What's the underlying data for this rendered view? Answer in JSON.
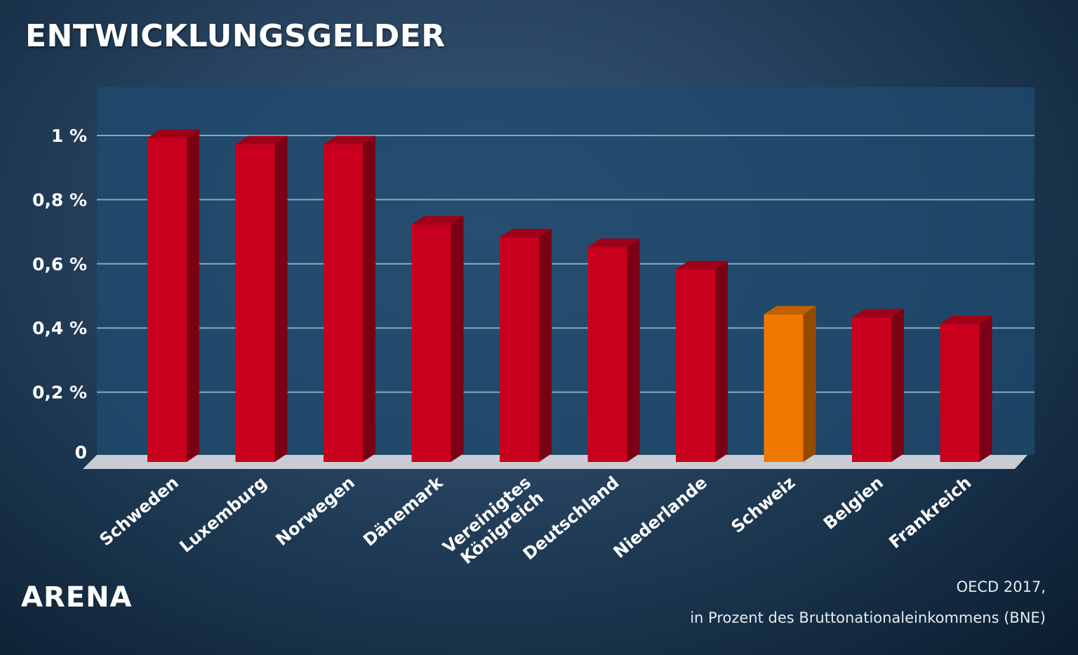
{
  "header": {
    "title": "ENTWICKLUNGSGELDER"
  },
  "footer": {
    "logo": "ARENA",
    "source_line1": "OECD 2017,",
    "source_line2": "in Prozent des Bruttonationaleinkommens (BNE)"
  },
  "colors": {
    "bar": "#c8001e",
    "highlight": "#f07800",
    "plot_bg": "#1f4a6e",
    "floor": "#c9cdd3",
    "grid": "#9ab8d2"
  },
  "chart_data": {
    "type": "bar",
    "title": "ENTWICKLUNGSGELDER",
    "xlabel": "",
    "ylabel": "",
    "ylim": [
      0,
      1.1
    ],
    "grid": true,
    "yticks": [
      {
        "value": 0,
        "label": "0"
      },
      {
        "value": 0.2,
        "label": "0,2 %"
      },
      {
        "value": 0.4,
        "label": "0,4 %"
      },
      {
        "value": 0.6,
        "label": "0,6 %"
      },
      {
        "value": 0.8,
        "label": "0,8 %"
      },
      {
        "value": 1.0,
        "label": "1 %"
      }
    ],
    "categories": [
      [
        "Schweden"
      ],
      [
        "Luxemburg"
      ],
      [
        "Norwegen"
      ],
      [
        "Dänemark"
      ],
      [
        "Vereinigtes",
        "Königreich"
      ],
      [
        "Deutschland"
      ],
      [
        "Niederlande"
      ],
      [
        "Schweiz"
      ],
      [
        "Belgien"
      ],
      [
        "Frankreich"
      ]
    ],
    "values": [
      1.01,
      0.99,
      0.99,
      0.74,
      0.7,
      0.67,
      0.6,
      0.46,
      0.45,
      0.43
    ],
    "highlight": [
      "Schweiz"
    ]
  }
}
